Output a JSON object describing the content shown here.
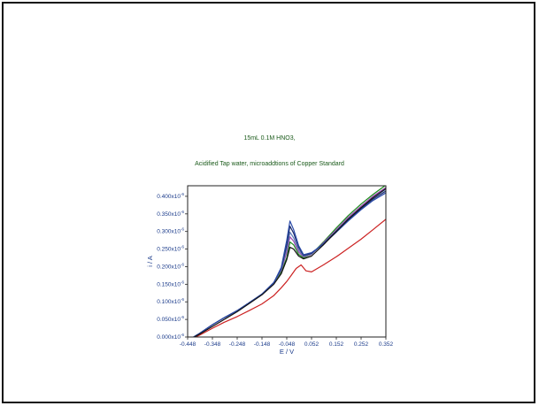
{
  "chart_data": {
    "type": "line",
    "title": "15mL 0.1M HNO3,",
    "subtitle": "Acidified Tap water, microaddtions of Copper Standard",
    "xlabel": "E / V",
    "ylabel": "i / A",
    "xlim": [
      -0.448,
      0.352
    ],
    "ylim": [
      0.0,
      0.43
    ],
    "x_ticks": [
      "-0.448",
      "-0.348",
      "-0.248",
      "-0.148",
      "-0.048",
      "0.052",
      "0.152",
      "0.252",
      "0.352"
    ],
    "y_ticks": [
      "0.000x10",
      "0.050x10",
      "0.100x10",
      "0.150x10",
      "0.200x10",
      "0.250x10",
      "0.300x10",
      "0.350x10",
      "0.400x10"
    ],
    "y_tick_exponent": "-6",
    "grid": false,
    "series": [
      {
        "color": "#cc2222",
        "x": [
          -0.448,
          -0.4,
          -0.348,
          -0.3,
          -0.248,
          -0.2,
          -0.148,
          -0.1,
          -0.07,
          -0.048,
          -0.03,
          -0.01,
          0.01,
          0.03,
          0.052,
          0.1,
          0.152,
          0.2,
          0.252,
          0.3,
          0.352
        ],
        "y": [
          -0.01,
          0.005,
          0.025,
          0.042,
          0.058,
          0.075,
          0.094,
          0.118,
          0.14,
          0.158,
          0.175,
          0.195,
          0.205,
          0.188,
          0.185,
          0.205,
          0.228,
          0.252,
          0.278,
          0.305,
          0.335
        ]
      },
      {
        "color": "#1a8a1a",
        "x": [
          -0.448,
          -0.4,
          -0.348,
          -0.3,
          -0.248,
          -0.2,
          -0.148,
          -0.1,
          -0.07,
          -0.048,
          -0.035,
          -0.02,
          0.0,
          0.02,
          0.052,
          0.1,
          0.152,
          0.2,
          0.252,
          0.3,
          0.352
        ],
        "y": [
          -0.01,
          0.01,
          0.035,
          0.055,
          0.075,
          0.097,
          0.122,
          0.155,
          0.185,
          0.225,
          0.27,
          0.262,
          0.235,
          0.225,
          0.235,
          0.27,
          0.31,
          0.345,
          0.378,
          0.405,
          0.432
        ]
      },
      {
        "color": "#9a4ab0",
        "x": [
          -0.448,
          -0.4,
          -0.348,
          -0.3,
          -0.248,
          -0.2,
          -0.148,
          -0.1,
          -0.07,
          -0.048,
          -0.035,
          -0.02,
          0.0,
          0.02,
          0.052,
          0.1,
          0.152,
          0.2,
          0.252,
          0.3,
          0.352
        ],
        "y": [
          -0.01,
          0.01,
          0.035,
          0.055,
          0.075,
          0.097,
          0.122,
          0.155,
          0.19,
          0.24,
          0.285,
          0.272,
          0.242,
          0.228,
          0.235,
          0.268,
          0.305,
          0.34,
          0.372,
          0.4,
          0.425
        ]
      },
      {
        "color": "#5a7ab8",
        "x": [
          -0.448,
          -0.4,
          -0.348,
          -0.3,
          -0.248,
          -0.2,
          -0.148,
          -0.1,
          -0.07,
          -0.048,
          -0.035,
          -0.02,
          0.0,
          0.02,
          0.052,
          0.1,
          0.152,
          0.2,
          0.252,
          0.3,
          0.352
        ],
        "y": [
          -0.01,
          0.01,
          0.035,
          0.055,
          0.075,
          0.097,
          0.122,
          0.155,
          0.192,
          0.252,
          0.298,
          0.282,
          0.248,
          0.23,
          0.236,
          0.266,
          0.302,
          0.336,
          0.368,
          0.395,
          0.42
        ]
      },
      {
        "color": "#1a2a6a",
        "x": [
          -0.448,
          -0.4,
          -0.348,
          -0.3,
          -0.248,
          -0.2,
          -0.148,
          -0.1,
          -0.07,
          -0.048,
          -0.035,
          -0.02,
          0.0,
          0.02,
          0.052,
          0.1,
          0.152,
          0.2,
          0.252,
          0.3,
          0.352
        ],
        "y": [
          -0.01,
          0.01,
          0.035,
          0.055,
          0.075,
          0.097,
          0.122,
          0.155,
          0.195,
          0.262,
          0.315,
          0.295,
          0.255,
          0.232,
          0.238,
          0.265,
          0.3,
          0.333,
          0.365,
          0.392,
          0.415
        ]
      },
      {
        "color": "#2a4aa8",
        "x": [
          -0.448,
          -0.4,
          -0.348,
          -0.3,
          -0.248,
          -0.2,
          -0.148,
          -0.1,
          -0.07,
          -0.048,
          -0.035,
          -0.02,
          0.0,
          0.02,
          0.052,
          0.1,
          0.152,
          0.2,
          0.252,
          0.3,
          0.352
        ],
        "y": [
          -0.01,
          0.01,
          0.035,
          0.055,
          0.075,
          0.097,
          0.122,
          0.155,
          0.198,
          0.275,
          0.33,
          0.305,
          0.26,
          0.234,
          0.24,
          0.264,
          0.298,
          0.33,
          0.362,
          0.388,
          0.41
        ]
      },
      {
        "color": "#111111",
        "x": [
          -0.448,
          -0.4,
          -0.348,
          -0.3,
          -0.248,
          -0.2,
          -0.148,
          -0.1,
          -0.07,
          -0.048,
          -0.035,
          -0.02,
          0.0,
          0.02,
          0.052,
          0.1,
          0.152,
          0.2,
          0.252,
          0.3,
          0.352
        ],
        "y": [
          -0.01,
          0.008,
          0.03,
          0.05,
          0.072,
          0.095,
          0.12,
          0.15,
          0.18,
          0.22,
          0.255,
          0.25,
          0.23,
          0.222,
          0.23,
          0.262,
          0.3,
          0.335,
          0.368,
          0.396,
          0.422
        ]
      }
    ]
  }
}
